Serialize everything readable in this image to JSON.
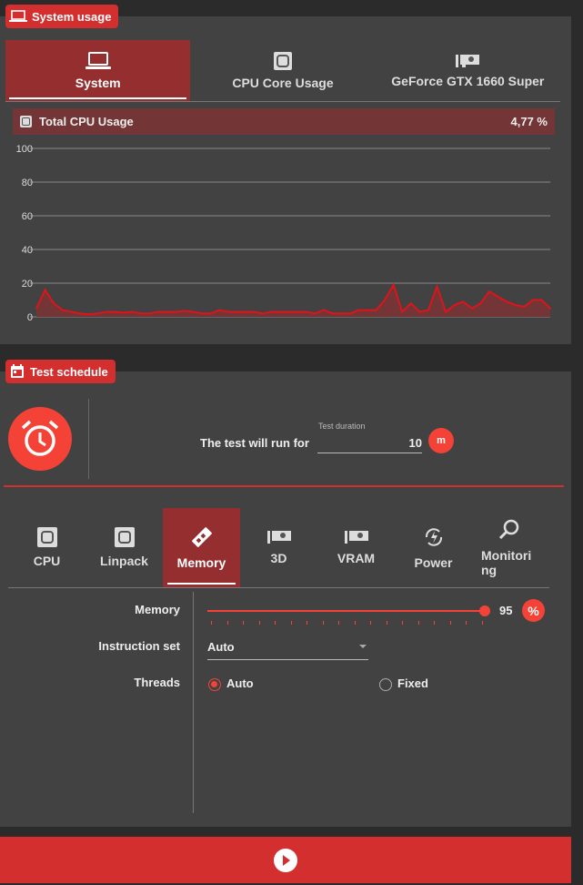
{
  "system_usage": {
    "badge": "System usage",
    "tabs": [
      {
        "label": "System",
        "icon": "laptop-icon",
        "active": true
      },
      {
        "label": "CPU Core Usage",
        "icon": "cpu-chip-icon"
      },
      {
        "label": "GeForce GTX 1660 Super",
        "icon": "gpu-card-icon"
      }
    ],
    "cpu_header": {
      "label": "Total CPU Usage",
      "value": "4,77 %"
    }
  },
  "chart_data": {
    "type": "area",
    "ylim": [
      0,
      100
    ],
    "yticks": [
      "100",
      "80",
      "60",
      "40",
      "20",
      "0"
    ],
    "grid": true,
    "color": "#e0131b",
    "values": [
      5,
      16,
      8,
      4,
      3,
      2,
      1.5,
      2,
      3,
      3,
      2.5,
      3,
      2,
      2,
      3,
      3,
      3,
      3.5,
      3,
      2,
      2,
      4,
      3,
      3,
      3,
      3,
      2,
      3,
      3,
      3,
      3,
      3,
      2,
      4,
      2,
      2,
      2,
      4,
      4,
      4,
      10,
      19,
      3,
      8,
      3,
      4,
      18,
      3,
      7,
      9,
      5,
      8,
      15,
      12,
      9,
      7,
      6,
      10,
      10,
      5
    ]
  },
  "test_schedule": {
    "badge": "Test schedule",
    "run_text": "The test will run for",
    "duration_label": "Test duration",
    "duration_value": "10",
    "unit": "m",
    "tabs": [
      {
        "label": "CPU",
        "icon": "cpu-chip-icon"
      },
      {
        "label": "Linpack",
        "icon": "cpu-chip-icon"
      },
      {
        "label": "Memory",
        "icon": "memory-stick-icon",
        "active": true
      },
      {
        "label": "3D",
        "icon": "gpu-card-icon"
      },
      {
        "label": "VRAM",
        "icon": "gpu-card-icon"
      },
      {
        "label": "Power",
        "icon": "power-cycle-icon"
      },
      {
        "label": "Monitoring",
        "icon": "magnifier-icon"
      }
    ],
    "memory_label": "Memory",
    "memory_value": "95",
    "memory_percent": 95,
    "percent_unit": "%",
    "instruction_label": "Instruction set",
    "instruction_value": "Auto",
    "threads_label": "Threads",
    "threads_auto": "Auto",
    "threads_fixed": "Fixed",
    "threads_selected": "Auto"
  },
  "accent": "#d32f2f"
}
